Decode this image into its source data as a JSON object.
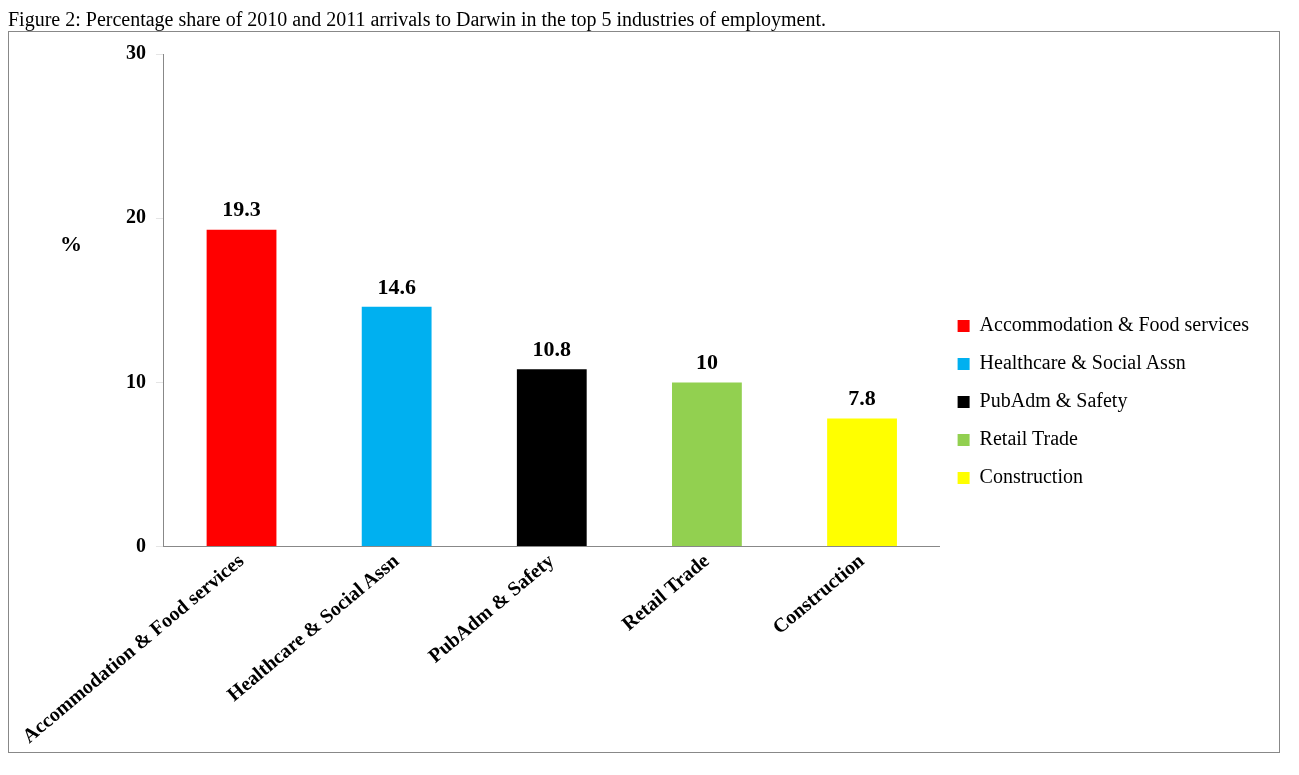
{
  "chart_data": {
    "type": "bar",
    "title": "Figure 2: Percentage share of 2010 and 2011 arrivals to Darwin in the top 5 industries of employment.",
    "ylabel": "%",
    "categories": [
      "Accommodation & Food services",
      "Healthcare & Social Assn",
      "PubAdm & Safety",
      "Retail Trade",
      "Construction"
    ],
    "series": [
      {
        "name": "Accommodation & Food services",
        "color": "#ff0000",
        "values": [
          19.3,
          null,
          null,
          null,
          null
        ]
      },
      {
        "name": "Healthcare & Social Assn",
        "color": "#00b0f0",
        "values": [
          null,
          14.6,
          null,
          null,
          null
        ]
      },
      {
        "name": "PubAdm & Safety",
        "color": "#000000",
        "values": [
          null,
          null,
          10.8,
          null,
          null
        ]
      },
      {
        "name": "Retail Trade",
        "color": "#92d050",
        "values": [
          null,
          null,
          null,
          10,
          null
        ]
      },
      {
        "name": "Construction",
        "color": "#ffff00",
        "values": [
          null,
          null,
          null,
          null,
          7.8
        ]
      }
    ],
    "ylim": [
      0,
      30
    ],
    "yticks": [
      0,
      10,
      20,
      30
    ],
    "grid": false,
    "legend": "right",
    "data_labels": true
  }
}
